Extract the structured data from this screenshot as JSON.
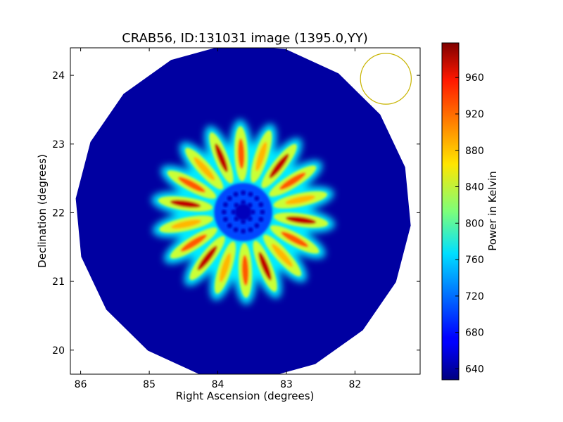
{
  "chart_data": {
    "type": "heatmap",
    "title": "CRAB56, ID:131031 image (1395.0,YY)",
    "xlabel": "Right Ascension (degrees)",
    "ylabel": "Declination (degrees)",
    "xlim": [
      86.15,
      81.05
    ],
    "ylim": [
      19.65,
      24.4
    ],
    "x_ticks": [
      86,
      85,
      84,
      83,
      82
    ],
    "y_ticks": [
      20,
      21,
      22,
      23,
      24
    ],
    "colorbar": {
      "label": "Power in Kelvin",
      "range": [
        628,
        998
      ],
      "ticks": [
        640,
        680,
        720,
        760,
        800,
        840,
        880,
        920,
        960
      ],
      "colormap": "jet"
    },
    "image": {
      "center": [
        83.63,
        22.01
      ],
      "field_radius_deg": 2.45,
      "field_polygon_sides": 18,
      "background_value": 640,
      "pattern": "radial petals",
      "petal_count": 18,
      "petal_inner_radius_deg": 0.35,
      "petal_outer_radius_deg": 1.35,
      "petal_peak_value": 975,
      "core_value": 650
    },
    "beam_circle": {
      "center": [
        81.55,
        23.95
      ],
      "radius_deg": 0.37,
      "color": "#c8b400"
    },
    "grid": false
  }
}
